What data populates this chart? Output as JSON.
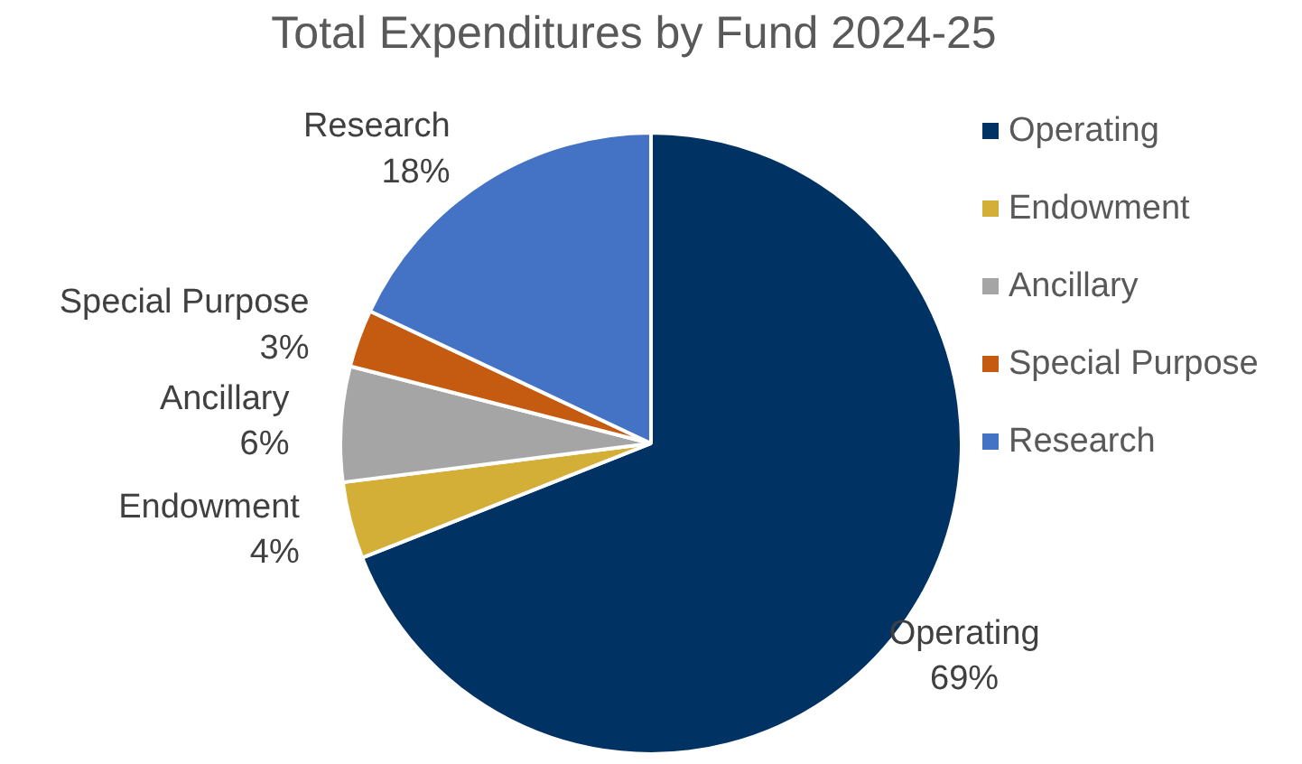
{
  "chart_data": {
    "type": "pie",
    "title": "Total Expenditures by Fund 2024-25",
    "categories": [
      "Operating",
      "Endowment",
      "Ancillary",
      "Special Purpose",
      "Research"
    ],
    "values": [
      69,
      4,
      6,
      3,
      18
    ],
    "colors": [
      "#003263",
      "#d4af37",
      "#a5a5a5",
      "#c55a11",
      "#4472c4"
    ],
    "value_labels": [
      "69%",
      "4%",
      "6%",
      "3%",
      "18%"
    ],
    "legend": "right"
  }
}
